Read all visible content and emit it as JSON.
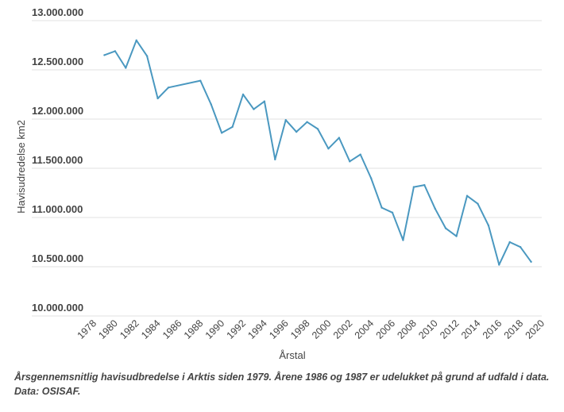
{
  "chart_data": {
    "type": "line",
    "xlabel": "Årstal",
    "ylabel": "Havisudredelse km2",
    "xlim": [
      1978,
      2020
    ],
    "ylim": [
      10000000,
      13000000
    ],
    "x_ticks": [
      "1978",
      "1980",
      "1982",
      "1984",
      "1986",
      "1988",
      "1990",
      "1992",
      "1994",
      "1996",
      "1998",
      "2000",
      "2002",
      "2004",
      "2006",
      "2008",
      "2010",
      "2012",
      "2014",
      "2016",
      "2018",
      "2020"
    ],
    "y_ticks": [
      "10.000.000",
      "10.500.000",
      "11.000.000",
      "11.500.000",
      "12.000.000",
      "12.500.000",
      "13.000.000"
    ],
    "grid": "horizontal",
    "line_color": "#4a98c0",
    "series": [
      {
        "x": [
          1979,
          1980,
          1981,
          1982,
          1983,
          1984,
          1985,
          1988,
          1989,
          1990,
          1991,
          1992,
          1993,
          1994,
          1995,
          1996,
          1997,
          1998,
          1999,
          2000,
          2001,
          2002,
          2003,
          2004,
          2005,
          2006,
          2007,
          2008,
          2009,
          2010,
          2011,
          2012,
          2013,
          2014,
          2015,
          2016,
          2017,
          2018,
          2019
        ],
        "values": [
          12650000,
          12690000,
          12520000,
          12800000,
          12640000,
          12210000,
          12320000,
          12390000,
          12150000,
          11860000,
          11920000,
          12250000,
          12100000,
          12180000,
          11590000,
          11990000,
          11870000,
          11970000,
          11900000,
          11700000,
          11810000,
          11570000,
          11640000,
          11400000,
          11100000,
          11050000,
          10770000,
          11310000,
          11330000,
          11090000,
          10890000,
          10810000,
          11220000,
          11140000,
          10920000,
          10520000,
          10750000,
          10700000,
          10550000
        ]
      }
    ]
  },
  "caption": {
    "line1": "Årsgennemsnitlig havisudbredelse i Arktis siden 1979. Årene 1986 og 1987 er udelukket på grund af udfald i data.",
    "line2": "Data: OSISAF."
  }
}
